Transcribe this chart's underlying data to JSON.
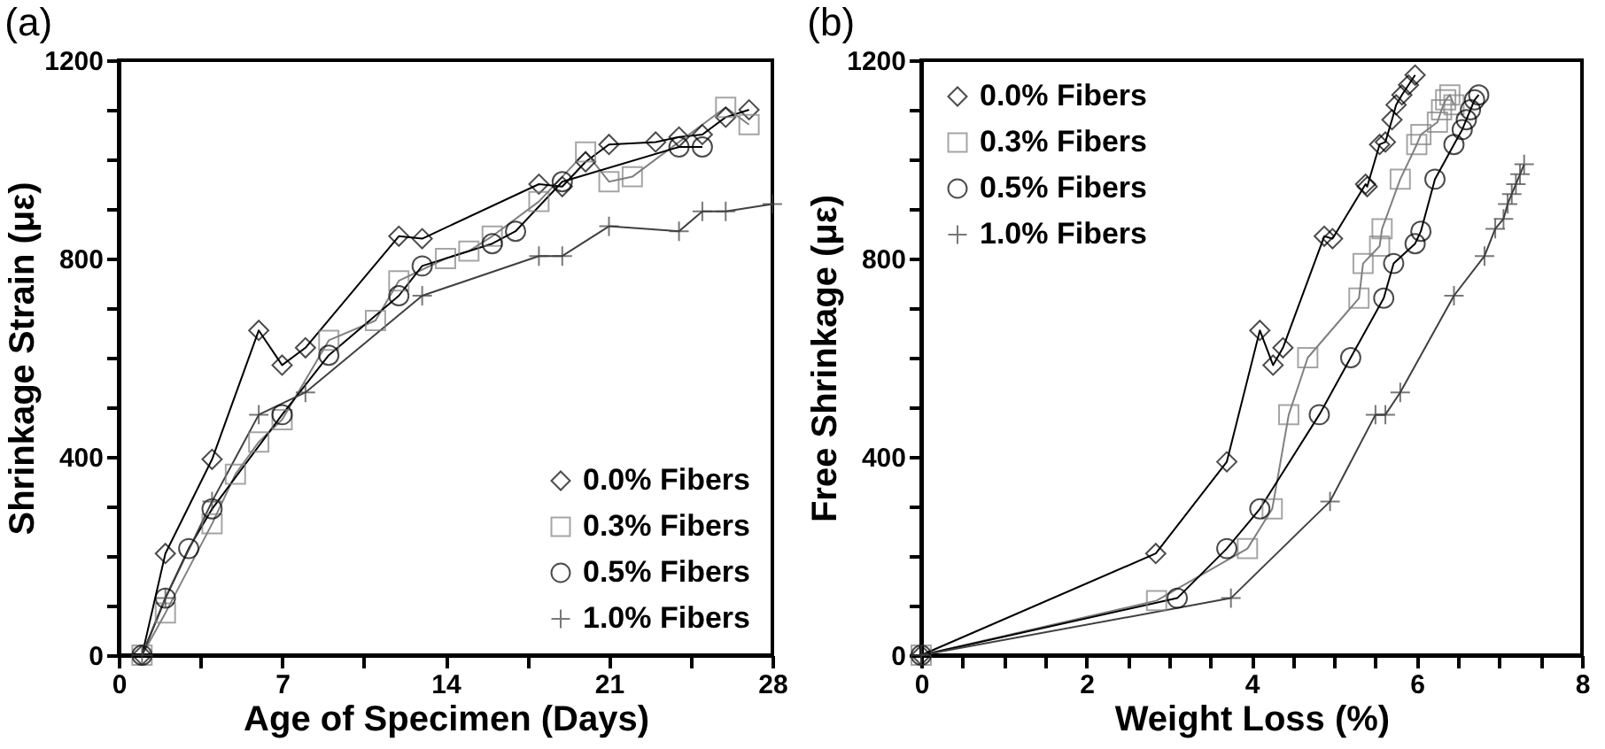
{
  "chart_data": [
    {
      "type": "line",
      "title": "(a)",
      "xlabel": "Age of Specimen (Days)",
      "ylabel": "Shrinkage Strain (με)",
      "xlim": [
        0,
        28
      ],
      "ylim": [
        0,
        1200
      ],
      "xticks": [
        0,
        {
          "value": 3.5,
          "label": null
        },
        7,
        {
          "value": 10.5,
          "label": null
        },
        14,
        {
          "value": 17.5,
          "label": null
        },
        21,
        {
          "value": 24.5,
          "label": null
        },
        28
      ],
      "yticks": [
        0,
        {
          "value": 100,
          "label": null
        },
        {
          "value": 200,
          "label": null
        },
        {
          "value": 300,
          "label": null
        },
        400,
        {
          "value": 500,
          "label": null
        },
        {
          "value": 600,
          "label": null
        },
        {
          "value": 700,
          "label": null
        },
        800,
        {
          "value": 900,
          "label": null
        },
        {
          "value": 1000,
          "label": null
        },
        {
          "value": 1100,
          "label": null
        },
        1200
      ],
      "grid": false,
      "legend": "bottom right",
      "series": [
        {
          "name": "0.0% Fibers",
          "color": "#000000",
          "marker": "diamond",
          "x": [
            1,
            2,
            4,
            6,
            7,
            8,
            12,
            13,
            18,
            19,
            20,
            21,
            23,
            24,
            25,
            26,
            27
          ],
          "values": [
            0,
            205,
            395,
            655,
            585,
            620,
            845,
            840,
            950,
            945,
            995,
            1030,
            1035,
            1045,
            1050,
            1085,
            1100
          ]
        },
        {
          "name": "0.3% Fibers",
          "color": "#808080",
          "marker": "square",
          "x": [
            1,
            2,
            4,
            5,
            6,
            7,
            9,
            11,
            12,
            14,
            15,
            16,
            18,
            20,
            21,
            22,
            26,
            27
          ],
          "values": [
            0,
            85,
            265,
            365,
            430,
            475,
            635,
            675,
            755,
            800,
            815,
            845,
            915,
            1015,
            955,
            965,
            1105,
            1070
          ]
        },
        {
          "name": "0.5% Fibers",
          "color": "#000000",
          "marker": "circle",
          "x": [
            1,
            2,
            3,
            4,
            7,
            9,
            12,
            13,
            16,
            17,
            19,
            24,
            25
          ],
          "values": [
            0,
            115,
            215,
            295,
            485,
            605,
            725,
            785,
            830,
            855,
            955,
            1025,
            1025
          ]
        },
        {
          "name": "1.0% Fibers",
          "color": "#404040",
          "marker": "cross",
          "x": [
            1,
            2,
            4,
            6,
            8,
            13,
            18,
            19,
            21,
            24,
            25,
            26,
            28
          ],
          "values": [
            0,
            115,
            310,
            485,
            530,
            725,
            805,
            805,
            865,
            855,
            895,
            895,
            910
          ]
        }
      ]
    },
    {
      "type": "line",
      "title": "(b)",
      "xlabel": "Weight Loss (%)",
      "ylabel": "Free Shrinkage (με)",
      "xlim": [
        0,
        8
      ],
      "ylim": [
        0,
        1200
      ],
      "xticks": [
        0,
        {
          "value": 0.5,
          "label": null
        },
        {
          "value": 1,
          "label": null
        },
        {
          "value": 1.5,
          "label": null
        },
        2,
        {
          "value": 2.5,
          "label": null
        },
        {
          "value": 3,
          "label": null
        },
        {
          "value": 3.5,
          "label": null
        },
        4,
        {
          "value": 4.5,
          "label": null
        },
        {
          "value": 5,
          "label": null
        },
        {
          "value": 5.5,
          "label": null
        },
        6,
        {
          "value": 6.5,
          "label": null
        },
        {
          "value": 7,
          "label": null
        },
        {
          "value": 7.5,
          "label": null
        },
        8
      ],
      "yticks": [
        0,
        {
          "value": 100,
          "label": null
        },
        {
          "value": 200,
          "label": null
        },
        {
          "value": 300,
          "label": null
        },
        400,
        {
          "value": 500,
          "label": null
        },
        {
          "value": 600,
          "label": null
        },
        {
          "value": 700,
          "label": null
        },
        800,
        {
          "value": 900,
          "label": null
        },
        {
          "value": 1000,
          "label": null
        },
        {
          "value": 1100,
          "label": null
        },
        1200
      ],
      "grid": false,
      "legend": "top left",
      "series": [
        {
          "name": "0.0% Fibers",
          "color": "#000000",
          "marker": "diamond",
          "x": [
            0,
            2.84,
            3.7,
            4.1,
            4.26,
            4.38,
            4.88,
            4.98,
            5.38,
            5.4,
            5.55,
            5.62,
            5.7,
            5.75,
            5.82,
            5.9,
            5.98
          ],
          "values": [
            0,
            205,
            390,
            655,
            585,
            620,
            845,
            840,
            950,
            945,
            1030,
            1035,
            1080,
            1110,
            1130,
            1150,
            1170
          ]
        },
        {
          "name": "0.3% Fibers",
          "color": "#808080",
          "marker": "square",
          "x": [
            0,
            2.85,
            3.95,
            4.25,
            4.45,
            4.68,
            5.3,
            5.35,
            5.55,
            5.58,
            5.8,
            6.0,
            6.05,
            6.25,
            6.3,
            6.35,
            6.4,
            6.45
          ],
          "values": [
            0,
            110,
            215,
            295,
            485,
            600,
            720,
            790,
            825,
            860,
            960,
            1030,
            1050,
            1075,
            1100,
            1120,
            1130,
            1110
          ]
        },
        {
          "name": "0.5% Fibers",
          "color": "#000000",
          "marker": "circle",
          "x": [
            0,
            3.1,
            3.7,
            4.1,
            4.82,
            5.2,
            5.6,
            5.72,
            5.98,
            6.05,
            6.22,
            6.45,
            6.55,
            6.6,
            6.65,
            6.7,
            6.75
          ],
          "values": [
            0,
            115,
            215,
            295,
            485,
            600,
            720,
            790,
            830,
            855,
            960,
            1030,
            1060,
            1080,
            1100,
            1120,
            1130
          ]
        },
        {
          "name": "1.0% Fibers",
          "color": "#404040",
          "marker": "cross",
          "x": [
            0,
            3.75,
            4.95,
            5.5,
            5.62,
            5.8,
            6.45,
            6.82,
            6.95,
            7.05,
            7.1,
            7.15,
            7.2,
            7.25,
            7.3
          ],
          "values": [
            0,
            115,
            310,
            485,
            485,
            530,
            725,
            805,
            860,
            880,
            910,
            930,
            950,
            970,
            990
          ]
        }
      ]
    }
  ]
}
